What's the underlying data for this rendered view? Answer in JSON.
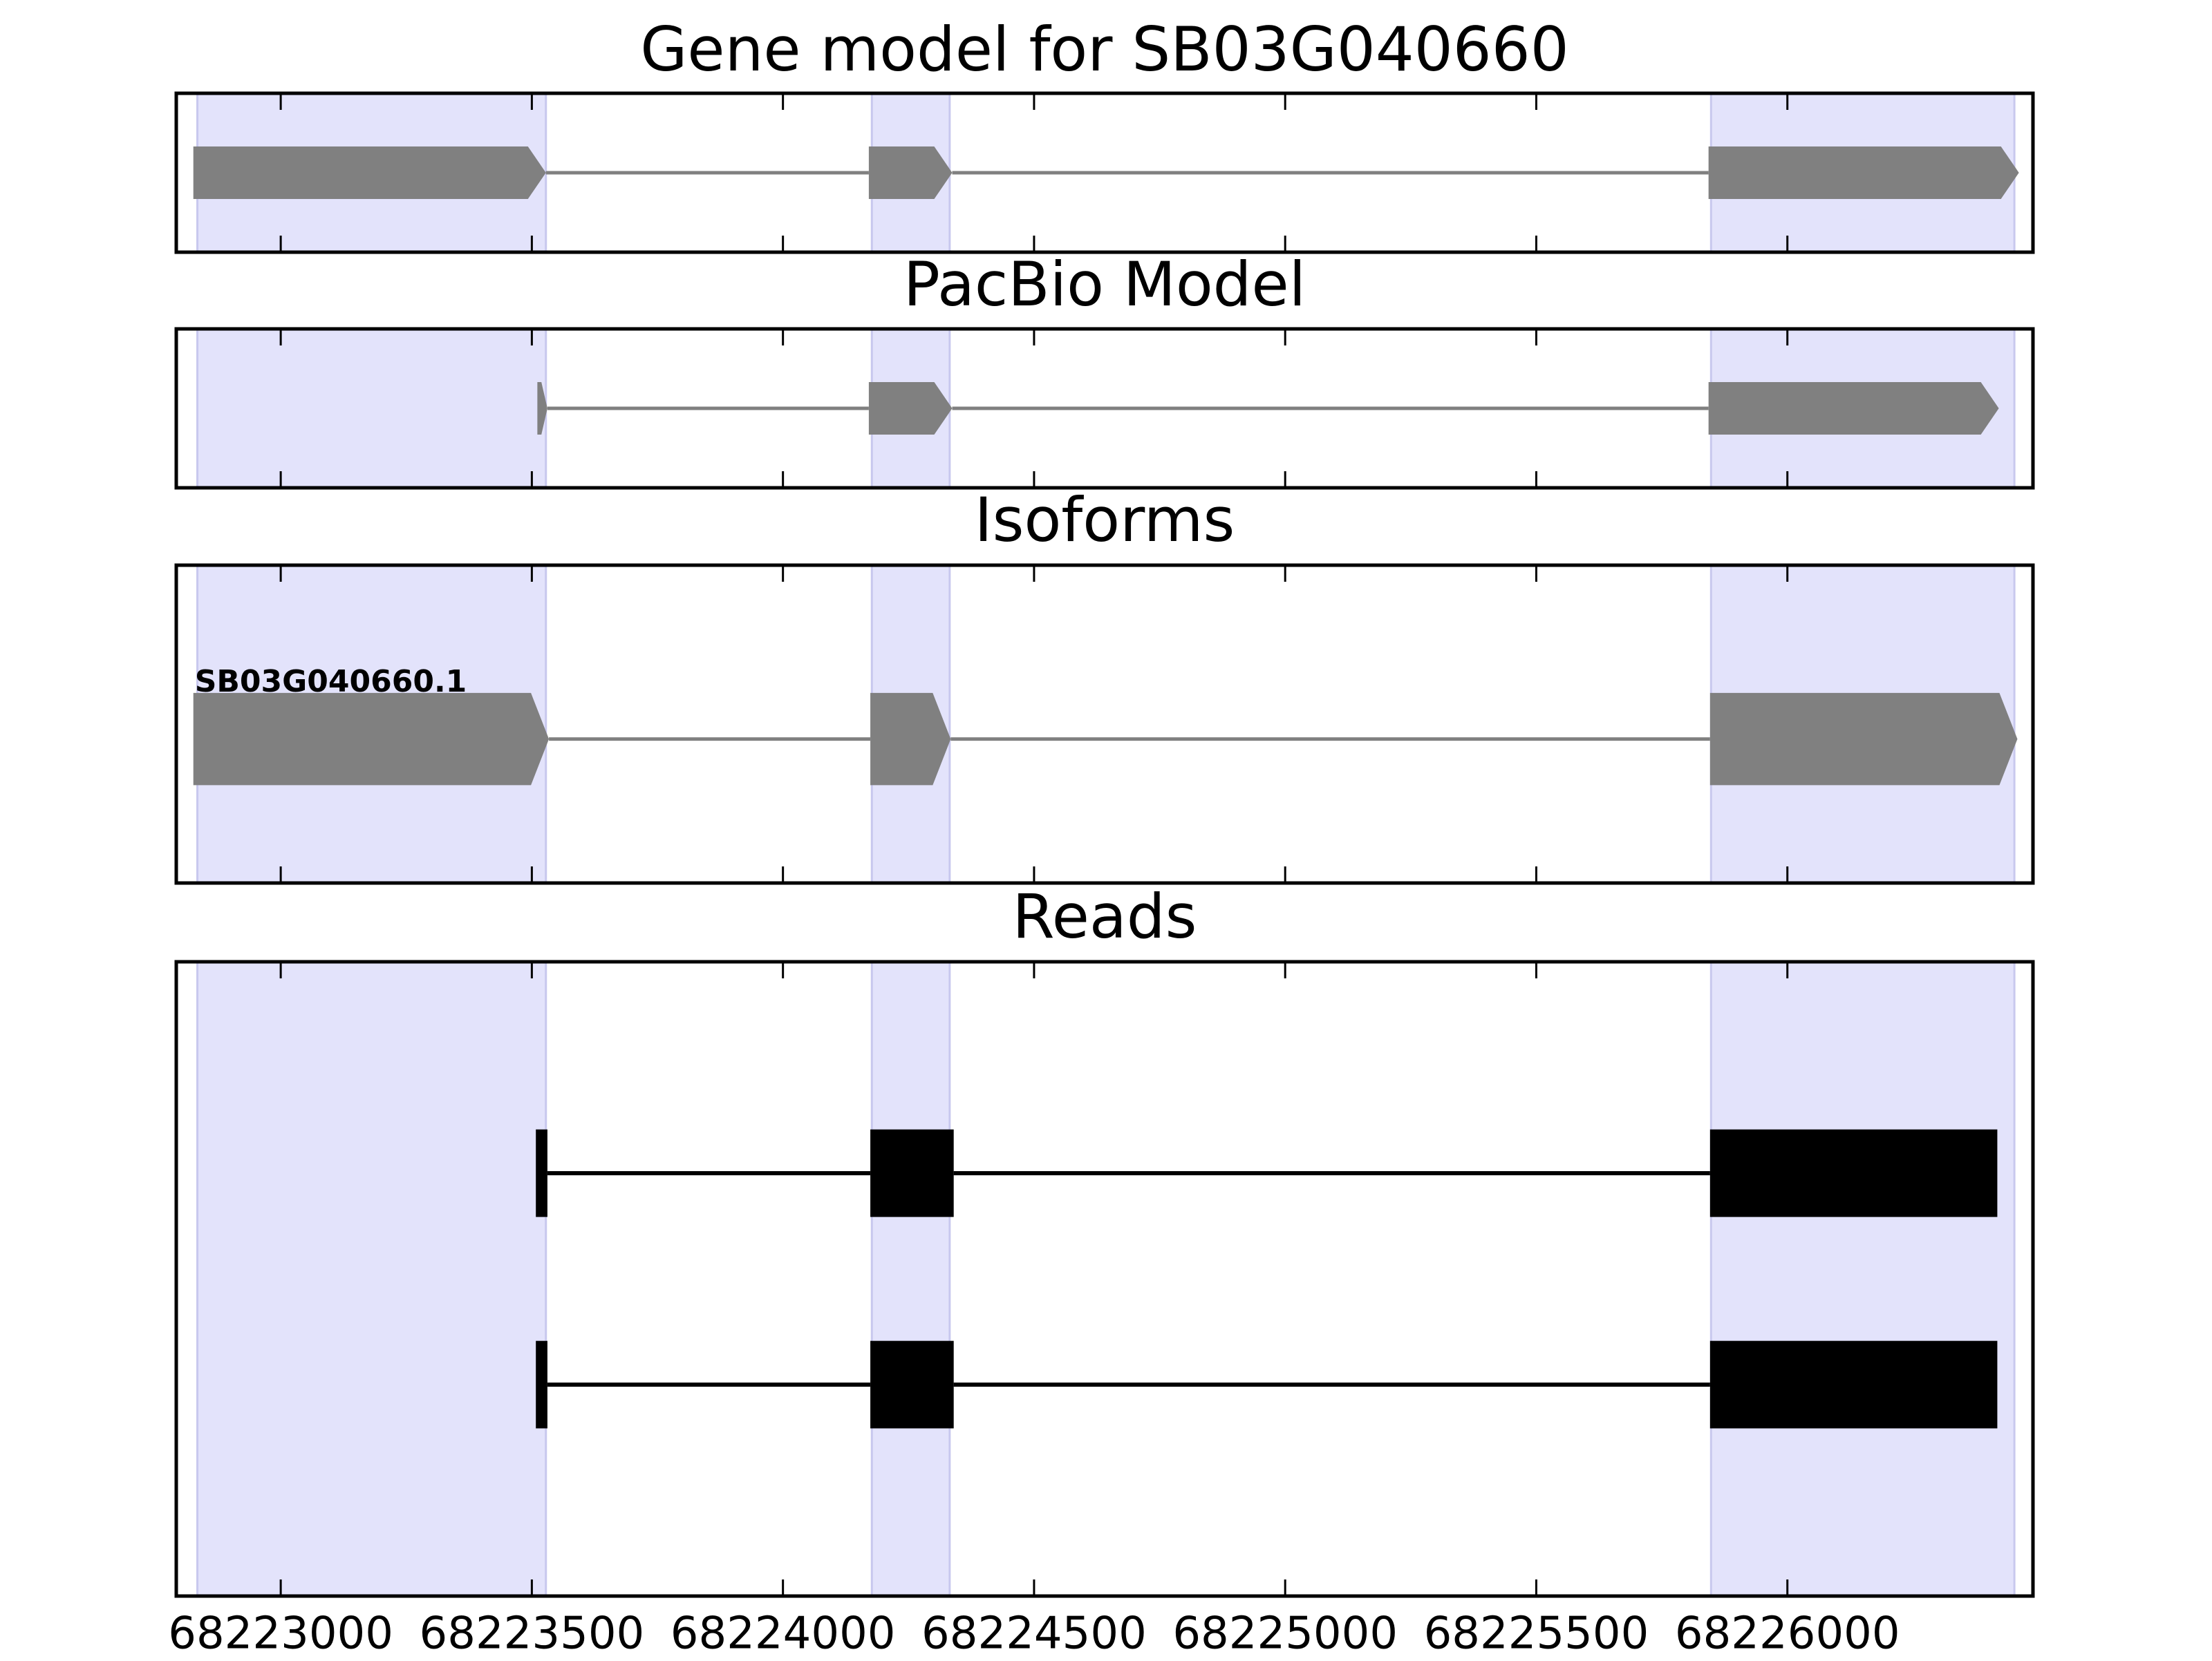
{
  "chart_data": [
    {
      "type": "gene",
      "title": "Gene model for SB03G040660",
      "strand": "+",
      "color": "#808080",
      "highlight_color": "#e3e3fb",
      "xlim": [
        68222792,
        68226489
      ],
      "xticks": [
        68223000,
        68223500,
        68224000,
        68224500,
        68225000,
        68225500,
        68226000
      ],
      "highlights": [
        [
          68222834,
          68223528
        ],
        [
          68224177,
          68224332
        ],
        [
          68225848,
          68226452
        ]
      ],
      "features": [
        {
          "exons": [
            [
              68222826,
              68223528
            ],
            [
              68224171,
              68224337
            ],
            [
              68225843,
              68226461
            ]
          ]
        }
      ]
    },
    {
      "type": "gene",
      "title": "PacBio Model",
      "strand": "+",
      "color": "#808080",
      "highlight_color": "#e3e3fb",
      "xlim": [
        68222792,
        68226489
      ],
      "xticks": [
        68223000,
        68223500,
        68224000,
        68224500,
        68225000,
        68225500,
        68226000
      ],
      "highlights": [
        [
          68222834,
          68223528
        ],
        [
          68224177,
          68224332
        ],
        [
          68225848,
          68226452
        ]
      ],
      "features": [
        {
          "exons": [
            [
              68223511,
              68223531
            ],
            [
              68224171,
              68224337
            ],
            [
              68225843,
              68226421
            ]
          ]
        }
      ]
    },
    {
      "type": "gene",
      "title": "Isoforms",
      "strand": "+",
      "color": "#808080",
      "highlight_color": "#e3e3fb",
      "xlim": [
        68222792,
        68226489
      ],
      "xticks": [
        68223000,
        68223500,
        68224000,
        68224500,
        68225000,
        68225500,
        68226000
      ],
      "highlights": [
        [
          68222834,
          68223528
        ],
        [
          68224177,
          68224332
        ],
        [
          68225848,
          68226452
        ]
      ],
      "features": [
        {
          "name": "SB03G040660.1",
          "exons": [
            [
              68222826,
              68223534
            ],
            [
              68224174,
              68224334
            ],
            [
              68225846,
              68226458
            ]
          ]
        }
      ]
    },
    {
      "type": "reads",
      "title": "Reads",
      "color": "#000000",
      "highlight_color": "#e3e3fb",
      "xlim": [
        68222792,
        68226489
      ],
      "xticks": [
        68223000,
        68223500,
        68224000,
        68224500,
        68225000,
        68225500,
        68226000
      ],
      "highlights": [
        [
          68222834,
          68223528
        ],
        [
          68224177,
          68224332
        ],
        [
          68225848,
          68226452
        ]
      ],
      "features": [
        {
          "exons": [
            [
              68223508,
              68223531
            ],
            [
              68224174,
              68224340
            ],
            [
              68225846,
              68226418
            ]
          ]
        },
        {
          "exons": [
            [
              68223508,
              68223531
            ],
            [
              68224174,
              68224340
            ],
            [
              68225846,
              68226418
            ]
          ]
        }
      ]
    }
  ]
}
